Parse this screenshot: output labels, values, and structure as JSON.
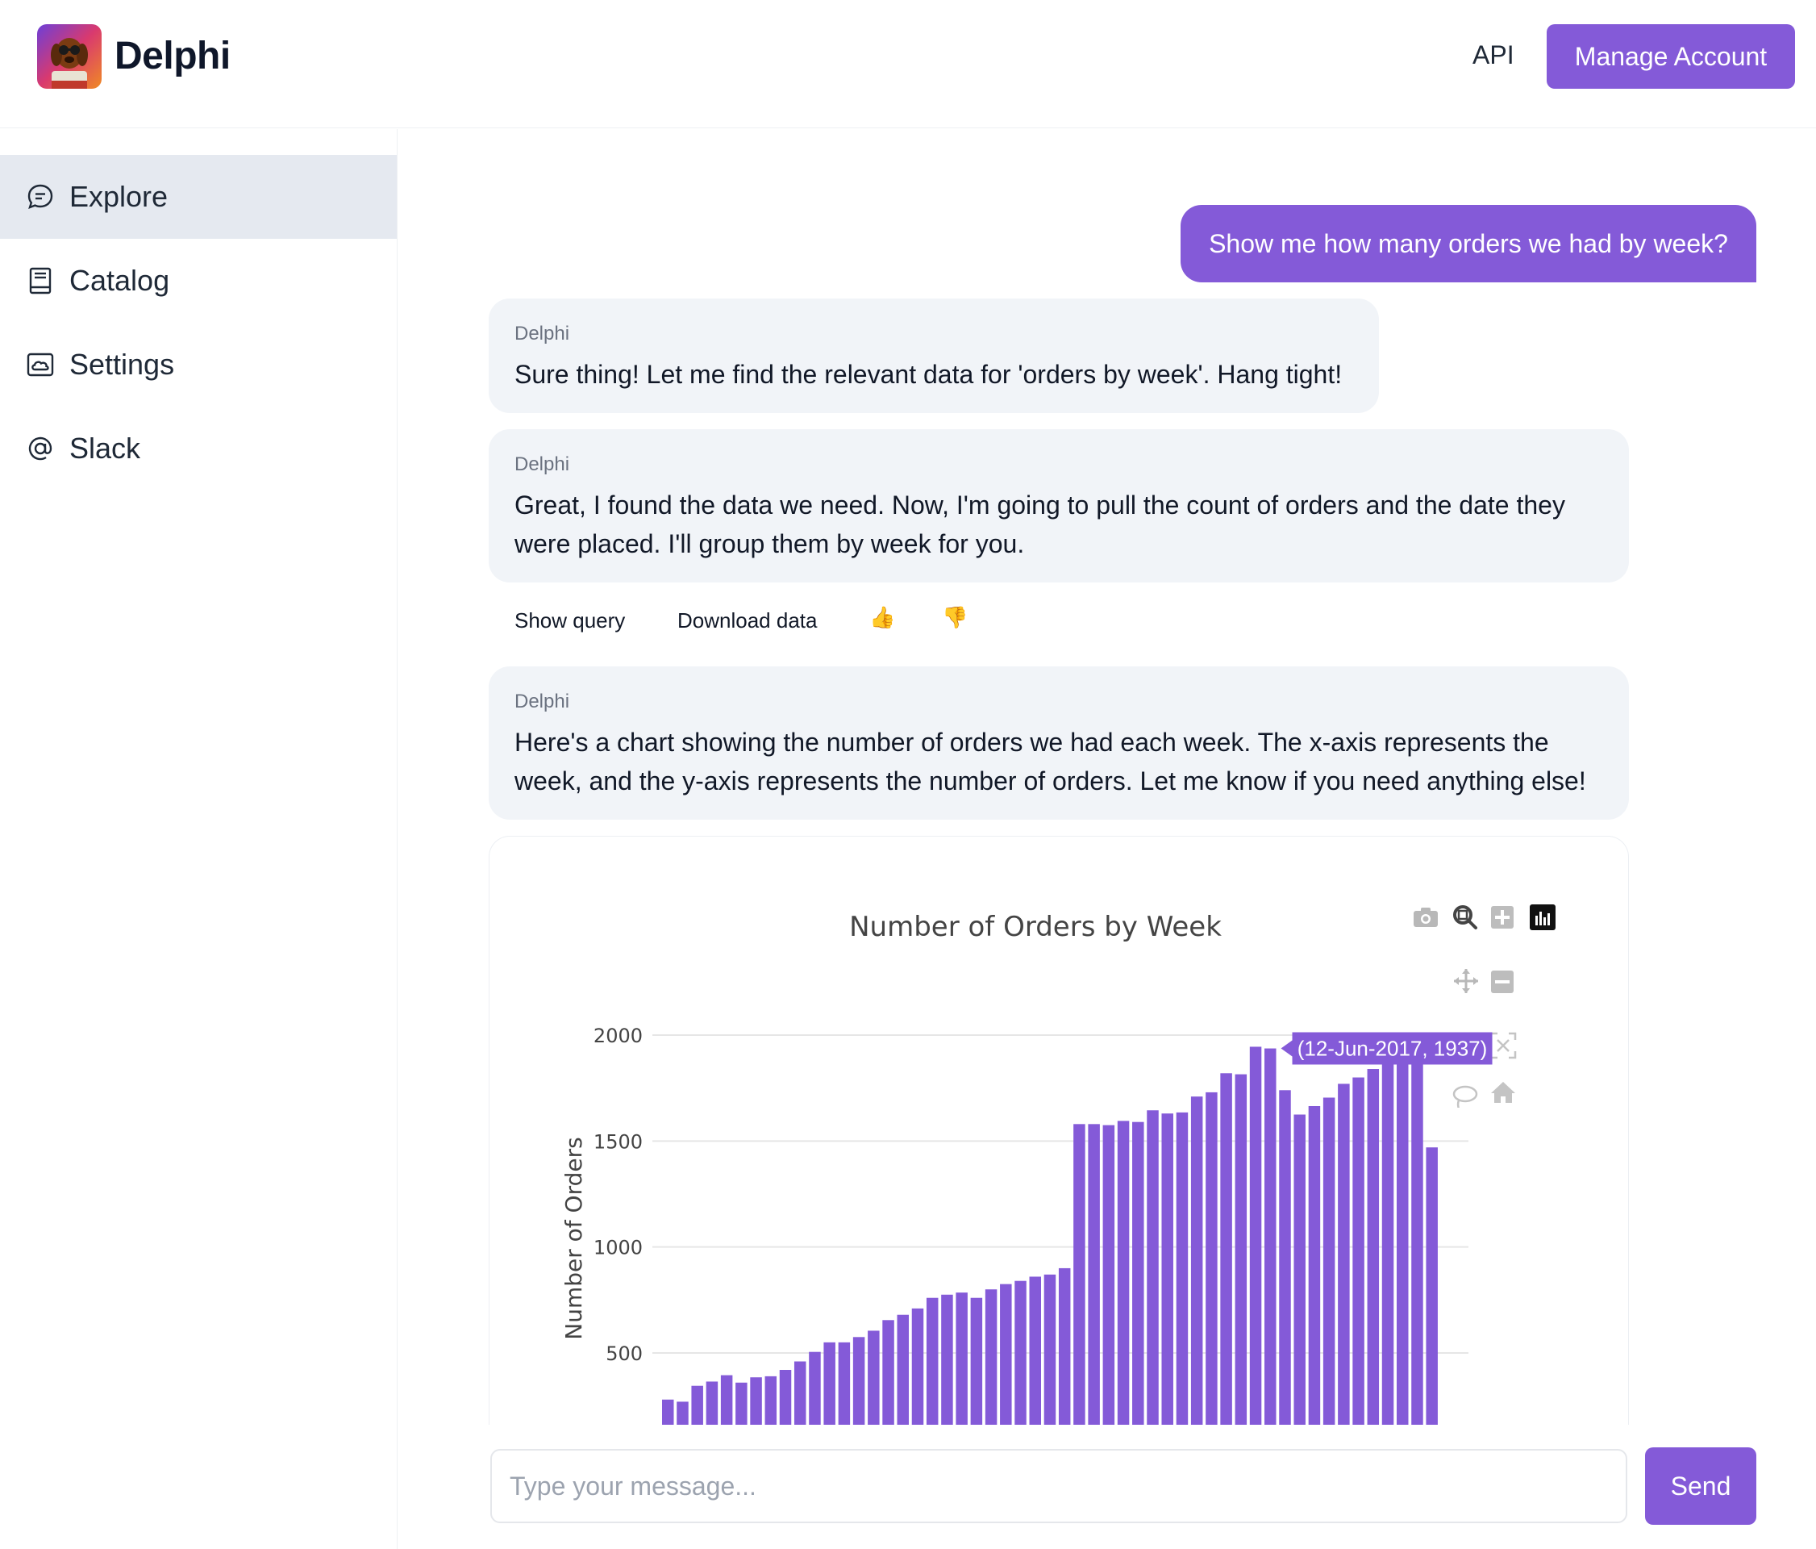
{
  "header": {
    "brand": "Delphi",
    "api_label": "API",
    "manage_account_label": "Manage Account"
  },
  "sidebar": {
    "items": [
      {
        "label": "Explore",
        "icon": "chat-bubble-icon",
        "active": true
      },
      {
        "label": "Catalog",
        "icon": "book-icon",
        "active": false
      },
      {
        "label": "Settings",
        "icon": "cloud-icon",
        "active": false
      },
      {
        "label": "Slack",
        "icon": "at-sign-icon",
        "active": false
      }
    ]
  },
  "chat": {
    "user_message": "Show me how many orders we had by week?",
    "messages": [
      {
        "sender": "Delphi",
        "text": "Sure thing! Let me find the relevant data for 'orders by week'. Hang tight!"
      },
      {
        "sender": "Delphi",
        "text": "Great, I found the data we need. Now, I'm going to pull the count of orders and the date they were placed. I'll group them by week for you."
      },
      {
        "sender": "Delphi",
        "text": "Here's a chart showing the number of orders we had each week. The x-axis represents the week, and the y-axis represents the number of orders. Let me know if you need anything else!"
      }
    ],
    "actions": {
      "show_query": "Show query",
      "download_data": "Download data",
      "thumbs_up": "👍",
      "thumbs_down": "👎"
    }
  },
  "chart_data": {
    "type": "bar",
    "title": "Number of Orders by Week",
    "ylabel": "Number of Orders",
    "xlabel": "",
    "ylim": [
      200,
      2050
    ],
    "yticks": [
      500,
      1000,
      1500,
      2000
    ],
    "grid": true,
    "bar_color": "#845ad8",
    "values": [
      280,
      270,
      345,
      365,
      395,
      360,
      385,
      390,
      420,
      460,
      505,
      550,
      550,
      575,
      605,
      655,
      680,
      710,
      760,
      775,
      785,
      760,
      800,
      825,
      840,
      860,
      870,
      900,
      1580,
      1580,
      1575,
      1595,
      1590,
      1645,
      1630,
      1635,
      1710,
      1730,
      1820,
      1815,
      1945,
      1937,
      1740,
      1625,
      1665,
      1705,
      1770,
      1800,
      1840,
      1870,
      1870,
      1870,
      1470
    ],
    "tooltip": {
      "label": "(12-Jun-2017, 1937)",
      "bar_index": 41
    }
  },
  "modebar": {
    "icons": [
      "camera-icon",
      "zoom-icon",
      "zoom-in-icon",
      "plotly-logo-icon",
      "pan-icon",
      "zoom-out-icon",
      "autoscale-icon",
      "lasso-icon",
      "home-icon"
    ]
  },
  "input": {
    "placeholder": "Type your message...",
    "value": "",
    "send_label": "Send"
  },
  "colors": {
    "accent": "#845ad8",
    "bubble_bg": "#f1f4f8",
    "active_nav_bg": "#e5e9f0"
  }
}
